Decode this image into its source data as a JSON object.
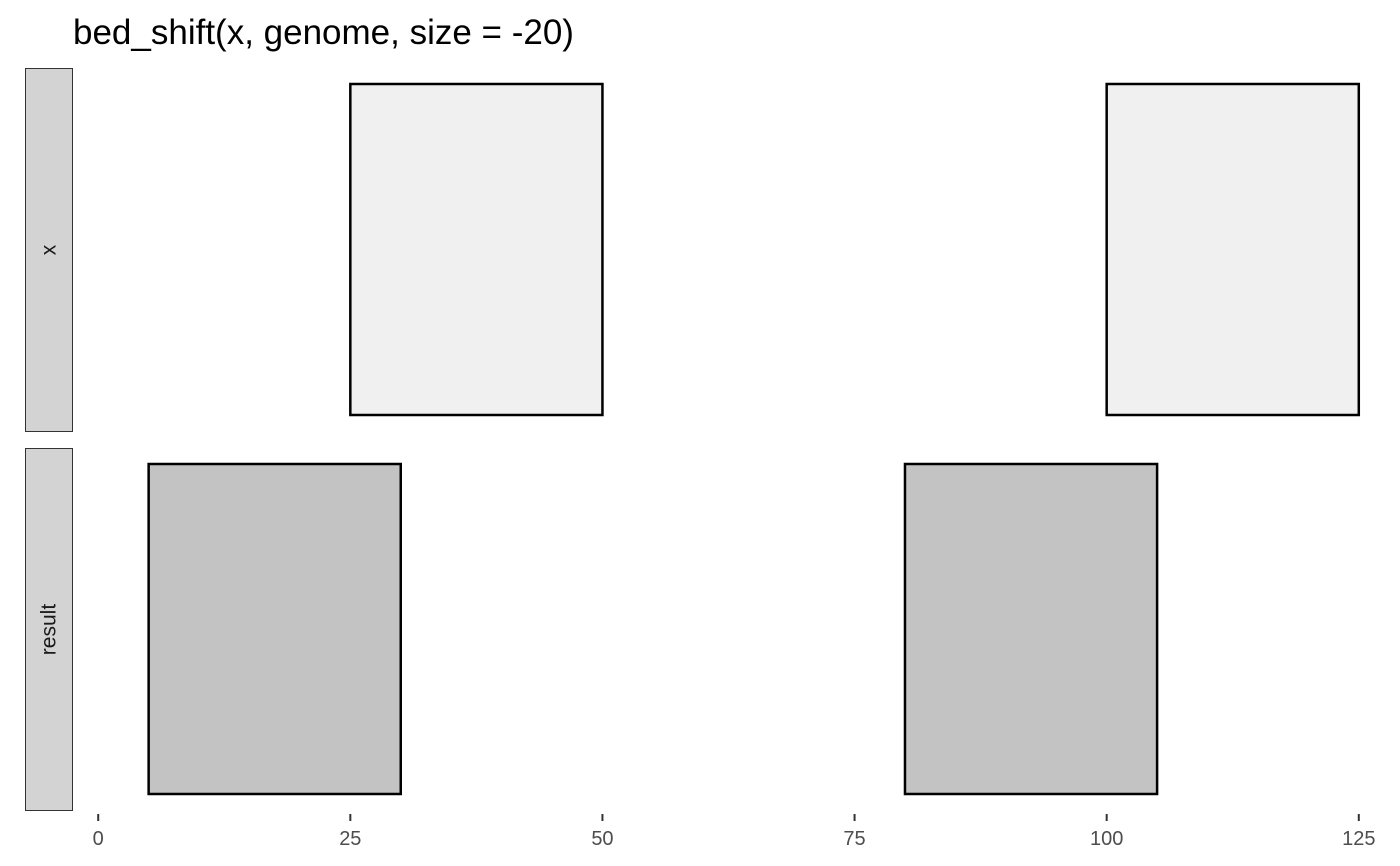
{
  "chart_data": {
    "type": "bar",
    "title": "bed_shift(x, genome, size = -20)",
    "xlabel": "",
    "ylabel": "",
    "xlim": [
      -2.5,
      127.5
    ],
    "x_ticks": [
      0,
      25,
      50,
      75,
      100,
      125
    ],
    "x_tick_labels": [
      "0",
      "25",
      "50",
      "75",
      "100",
      "125"
    ],
    "grid": false,
    "legend": "none",
    "facets": [
      {
        "label": "x",
        "fill": "#f0f0f0",
        "intervals": [
          {
            "start": 25,
            "end": 50
          },
          {
            "start": 100,
            "end": 125
          }
        ]
      },
      {
        "label": "result",
        "fill": "#c3c3c3",
        "intervals": [
          {
            "start": 5,
            "end": 30
          },
          {
            "start": 80,
            "end": 105
          }
        ]
      }
    ]
  },
  "colors": {
    "strip_fill": "#d3d3d3",
    "strip_border": "#333333",
    "interval_border": "#000000",
    "tick_color": "#333333"
  }
}
